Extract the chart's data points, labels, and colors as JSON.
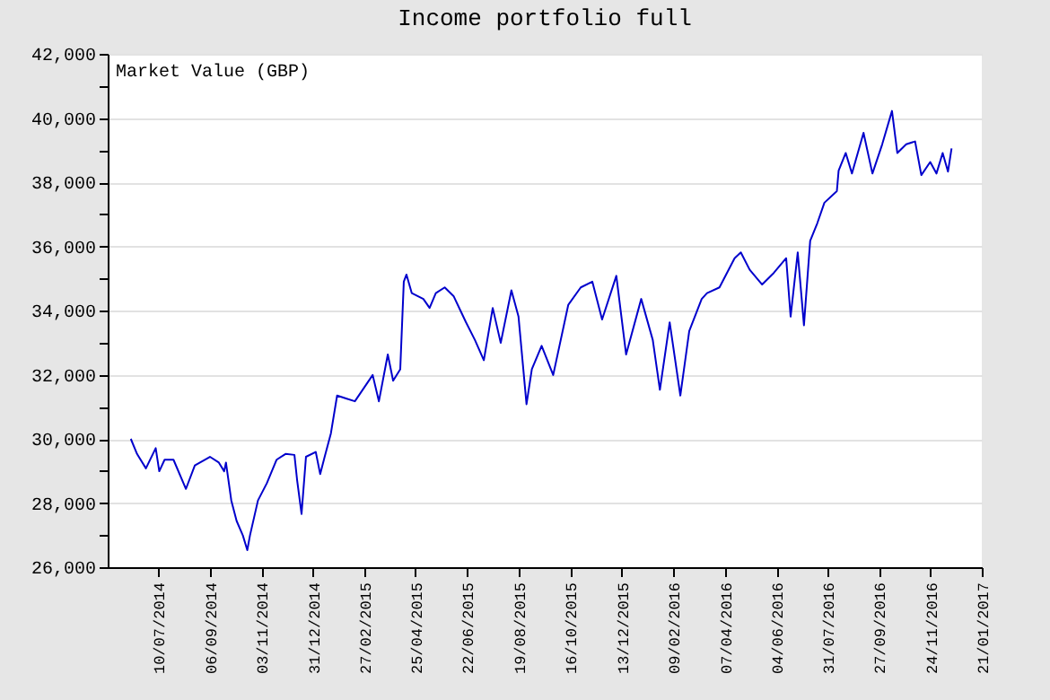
{
  "chart_data": {
    "type": "line",
    "title": "Income portfolio full",
    "ylabel": "Market Value (GBP)",
    "x": [
      "2014-06-09",
      "2014-06-16",
      "2014-06-26",
      "2014-07-07",
      "2014-07-11",
      "2014-07-17",
      "2014-07-27",
      "2014-08-10",
      "2014-08-20",
      "2014-09-06",
      "2014-09-16",
      "2014-09-22",
      "2014-09-24",
      "2014-09-30",
      "2014-10-06",
      "2014-10-13",
      "2014-10-18",
      "2014-10-21",
      "2014-10-30",
      "2014-11-09",
      "2014-11-20",
      "2014-11-30",
      "2014-12-10",
      "2014-12-13",
      "2014-12-18",
      "2014-12-23",
      "2015-01-03",
      "2015-01-08",
      "2015-01-13",
      "2015-01-20",
      "2015-01-27",
      "2015-02-06",
      "2015-02-16",
      "2015-03-08",
      "2015-03-15",
      "2015-03-25",
      "2015-03-31",
      "2015-04-08",
      "2015-04-12",
      "2015-04-15",
      "2015-04-21",
      "2015-05-04",
      "2015-05-11",
      "2015-05-18",
      "2015-05-28",
      "2015-06-07",
      "2015-06-21",
      "2015-07-01",
      "2015-07-11",
      "2015-07-21",
      "2015-07-30",
      "2015-08-11",
      "2015-08-19",
      "2015-08-28",
      "2015-09-03",
      "2015-09-14",
      "2015-09-27",
      "2015-10-14",
      "2015-10-28",
      "2015-11-10",
      "2015-11-21",
      "2015-12-07",
      "2015-12-18",
      "2016-01-04",
      "2016-01-17",
      "2016-01-25",
      "2016-02-05",
      "2016-02-17",
      "2016-02-27",
      "2016-03-12",
      "2016-03-18",
      "2016-04-01",
      "2016-04-18",
      "2016-04-25",
      "2016-05-05",
      "2016-05-19",
      "2016-06-01",
      "2016-06-15",
      "2016-06-20",
      "2016-06-28",
      "2016-07-05",
      "2016-07-12",
      "2016-07-20",
      "2016-07-28",
      "2016-08-11",
      "2016-08-13",
      "2016-08-21",
      "2016-08-28",
      "2016-09-10",
      "2016-09-20",
      "2016-10-01",
      "2016-10-12",
      "2016-10-18",
      "2016-10-28",
      "2016-11-07",
      "2016-11-14",
      "2016-11-24",
      "2016-12-01",
      "2016-12-08",
      "2016-12-14",
      "2016-12-18"
    ],
    "series": [
      {
        "color": "#0000cc",
        "values": [
          30000,
          29530,
          29080,
          29710,
          28990,
          29350,
          29350,
          28440,
          29170,
          29440,
          29260,
          28990,
          29260,
          28080,
          27440,
          26990,
          26530,
          26990,
          28080,
          28620,
          29350,
          29530,
          29500,
          28720,
          27660,
          29440,
          29590,
          28900,
          29440,
          30170,
          31350,
          31260,
          31170,
          31990,
          31170,
          32630,
          31810,
          32170,
          34900,
          35120,
          34540,
          34360,
          34080,
          34540,
          34720,
          34450,
          33630,
          33080,
          32450,
          34080,
          32990,
          34630,
          33810,
          31080,
          32170,
          32900,
          31990,
          34180,
          34720,
          34900,
          33720,
          35080,
          32630,
          34360,
          33080,
          31530,
          33630,
          31350,
          33360,
          34360,
          34540,
          34720,
          35630,
          35810,
          35270,
          34810,
          35170,
          35630,
          33810,
          35810,
          33540,
          36170,
          36720,
          37360,
          37720,
          38360,
          38910,
          38270,
          39540,
          38270,
          39180,
          40220,
          38910,
          39180,
          39270,
          38220,
          38630,
          38270,
          38910,
          38330,
          39050
        ]
      }
    ],
    "xlim": [
      "2014-05-14",
      "2017-01-21"
    ],
    "xticks": [
      {
        "value": "2014-07-10",
        "label": "10/07/2014"
      },
      {
        "value": "2014-09-06",
        "label": "06/09/2014"
      },
      {
        "value": "2014-11-03",
        "label": "03/11/2014"
      },
      {
        "value": "2014-12-31",
        "label": "31/12/2014"
      },
      {
        "value": "2015-02-27",
        "label": "27/02/2015"
      },
      {
        "value": "2015-04-25",
        "label": "25/04/2015"
      },
      {
        "value": "2015-06-22",
        "label": "22/06/2015"
      },
      {
        "value": "2015-08-19",
        "label": "19/08/2015"
      },
      {
        "value": "2015-10-16",
        "label": "16/10/2015"
      },
      {
        "value": "2015-12-13",
        "label": "13/12/2015"
      },
      {
        "value": "2016-02-09",
        "label": "09/02/2016"
      },
      {
        "value": "2016-04-07",
        "label": "07/04/2016"
      },
      {
        "value": "2016-06-04",
        "label": "04/06/2016"
      },
      {
        "value": "2016-07-31",
        "label": "31/07/2016"
      },
      {
        "value": "2016-09-27",
        "label": "27/09/2016"
      },
      {
        "value": "2016-11-24",
        "label": "24/11/2016"
      },
      {
        "value": "2017-01-21",
        "label": "21/01/2017"
      }
    ],
    "ylim": [
      26000,
      42000
    ],
    "yticks": [
      {
        "value": 26000,
        "label": "26,000"
      },
      {
        "value": 27000,
        "label": null
      },
      {
        "value": 28000,
        "label": "28,000"
      },
      {
        "value": 29000,
        "label": null
      },
      {
        "value": 30000,
        "label": "30,000"
      },
      {
        "value": 31000,
        "label": null
      },
      {
        "value": 32000,
        "label": "32,000"
      },
      {
        "value": 33000,
        "label": null
      },
      {
        "value": 34000,
        "label": "34,000"
      },
      {
        "value": 35000,
        "label": null
      },
      {
        "value": 36000,
        "label": "36,000"
      },
      {
        "value": 37000,
        "label": null
      },
      {
        "value": 38000,
        "label": "38,000"
      },
      {
        "value": 39000,
        "label": null
      },
      {
        "value": 40000,
        "label": "40,000"
      },
      {
        "value": 41000,
        "label": null
      },
      {
        "value": 42000,
        "label": "42,000"
      }
    ],
    "grid": "y",
    "marker": "none",
    "line_style": "solid"
  }
}
